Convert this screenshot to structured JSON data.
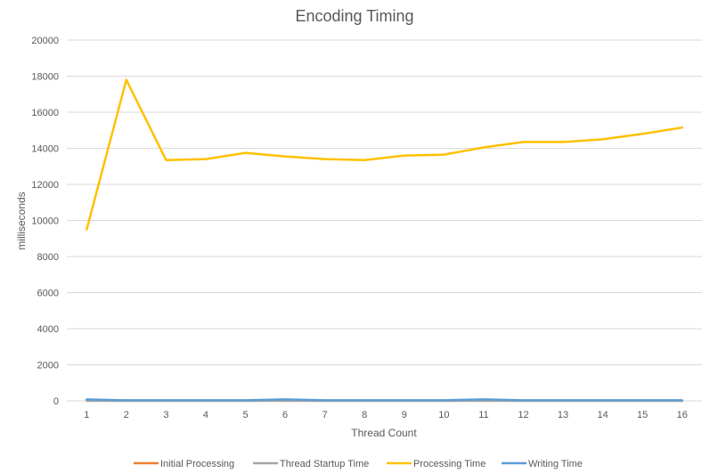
{
  "chart_data": {
    "type": "line",
    "title": "Encoding Timing",
    "xlabel": "Thread Count",
    "ylabel": "milliseconds",
    "ylim": [
      0,
      20000
    ],
    "yticks": [
      0,
      2000,
      4000,
      6000,
      8000,
      10000,
      12000,
      14000,
      16000,
      18000,
      20000
    ],
    "grid": true,
    "legend_position": "bottom",
    "x": [
      1,
      2,
      3,
      4,
      5,
      6,
      7,
      8,
      9,
      10,
      11,
      12,
      13,
      14,
      15,
      16
    ],
    "series": [
      {
        "name": "Initial Processing",
        "color": "#ED7D31",
        "values": [
          5,
          5,
          5,
          5,
          5,
          5,
          5,
          5,
          5,
          5,
          5,
          5,
          5,
          5,
          5,
          5
        ]
      },
      {
        "name": "Thread Startup Time",
        "color": "#A5A5A5",
        "values": [
          5,
          5,
          5,
          5,
          5,
          5,
          5,
          5,
          5,
          5,
          5,
          5,
          5,
          5,
          5,
          5
        ]
      },
      {
        "name": "Processing Time",
        "color": "#FFC000",
        "values": [
          9500,
          17800,
          13350,
          13400,
          13750,
          13550,
          13400,
          13350,
          13600,
          13650,
          14050,
          14350,
          14350,
          14500,
          14800,
          15150
        ]
      },
      {
        "name": "Writing Time",
        "color": "#5B9BD5",
        "values": [
          80,
          30,
          30,
          30,
          30,
          80,
          30,
          30,
          30,
          30,
          80,
          30,
          30,
          30,
          30,
          30
        ]
      }
    ]
  }
}
